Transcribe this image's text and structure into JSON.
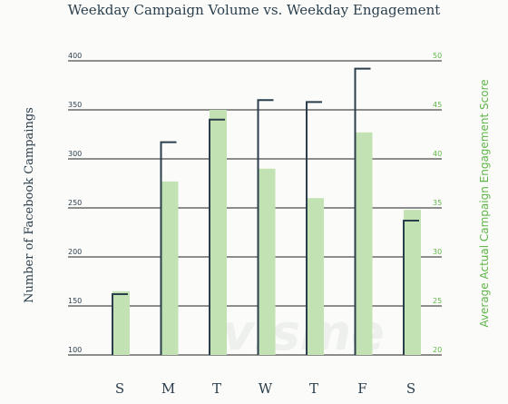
{
  "chart_data": {
    "type": "bar",
    "title": "Weekday Campaign Volume vs. Weekday Engagement",
    "xlabel": "",
    "ylabel_left": "Number of Facebook Campaings",
    "ylabel_right": "Average Actual Campaign Engagement Score",
    "categories": [
      "S",
      "M",
      "T",
      "W",
      "T",
      "F",
      "S"
    ],
    "y_left": {
      "min": 100,
      "max": 400,
      "ticks": [
        "100",
        "150",
        "200",
        "250",
        "300",
        "350",
        "400"
      ]
    },
    "y_right": {
      "min": 20,
      "max": 50,
      "ticks": [
        "20",
        "25",
        "30",
        "35",
        "40",
        "45",
        "50"
      ]
    },
    "series": [
      {
        "axis": "right",
        "style": "bar",
        "color": "#c2e2b3",
        "values": [
          26.5,
          37.7,
          45,
          39,
          36,
          42.7,
          34.8
        ]
      },
      {
        "axis": "left",
        "style": "step",
        "color": "#2b3e4c",
        "values": [
          162,
          317,
          340,
          360,
          358,
          392,
          237
        ]
      }
    ],
    "grid": true,
    "watermark": "visme"
  }
}
